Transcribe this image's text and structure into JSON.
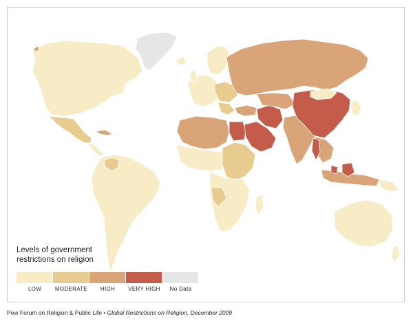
{
  "legend": {
    "title_line1": "Levels of government",
    "title_line2": "restrictions on religion",
    "items": [
      {
        "label": "LOW",
        "color": "#f7ecc6"
      },
      {
        "label": "MODERATE",
        "color": "#e8cc8f"
      },
      {
        "label": "HIGH",
        "color": "#d9a478"
      },
      {
        "label": "VERY HIGH",
        "color": "#c45c4c"
      },
      {
        "label": "No Data",
        "color": "#e6e6e6"
      }
    ]
  },
  "source": {
    "publisher": "Pew Forum on Religion & Public Life •",
    "report": "Global Restrictions on Religion, December 2009"
  },
  "colors": {
    "low": "#f7ecc6",
    "moderate": "#e8cc8f",
    "high": "#d9a478",
    "very_high": "#c45c4c",
    "no_data": "#e6e6e6",
    "border": "#ffffff"
  }
}
